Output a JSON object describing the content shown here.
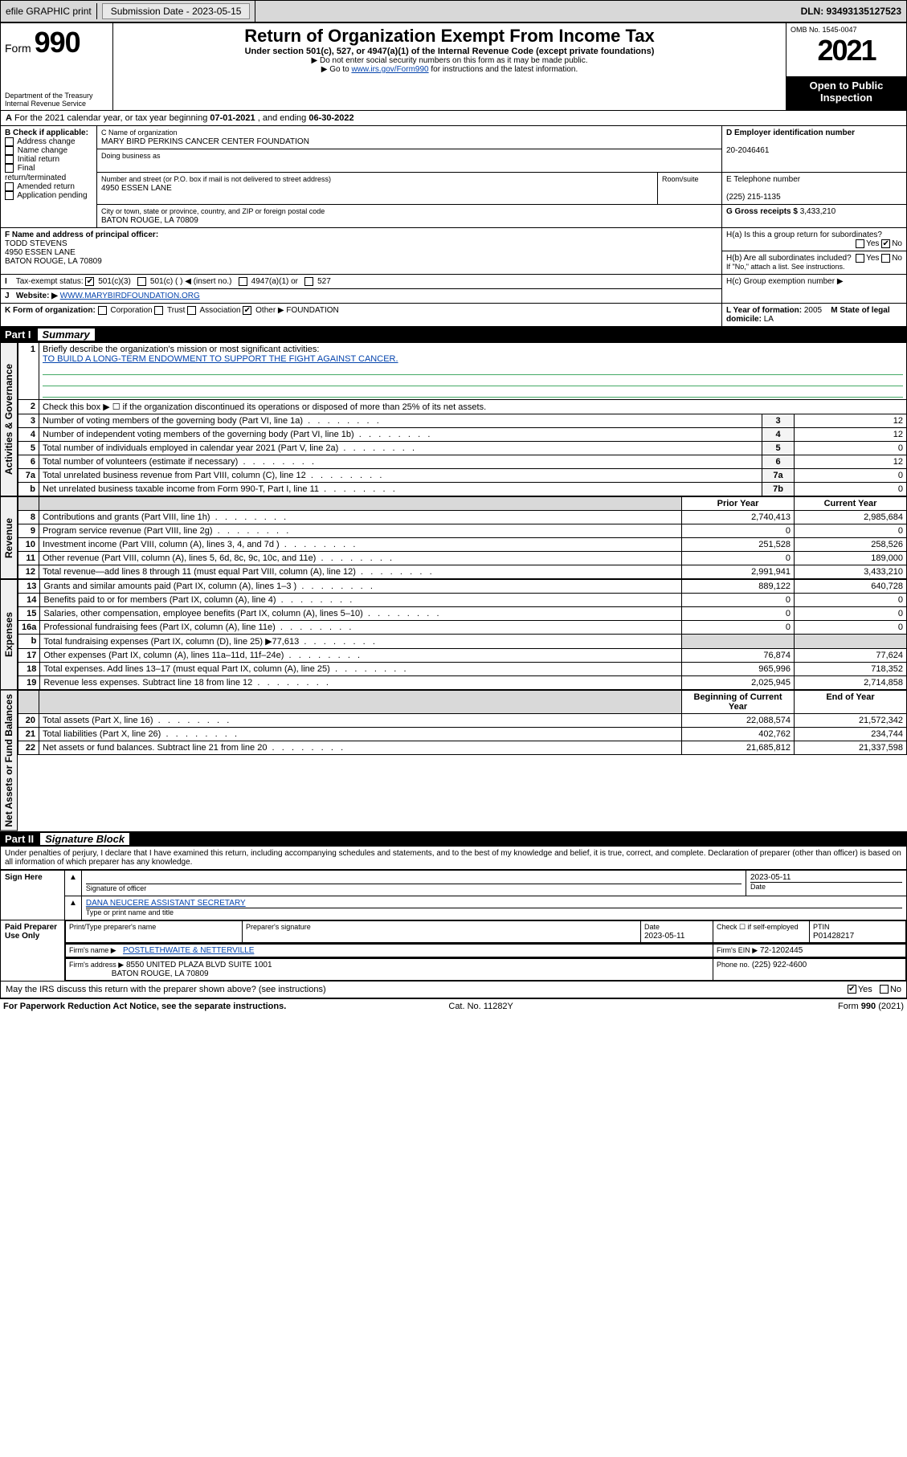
{
  "topbar": {
    "efile": "efile GRAPHIC print",
    "submission_label": "Submission Date - 2023-05-15",
    "dln": "DLN: 93493135127523"
  },
  "header": {
    "form_label": "Form",
    "form_number": "990",
    "title": "Return of Organization Exempt From Income Tax",
    "subtitle": "Under section 501(c), 527, or 4947(a)(1) of the Internal Revenue Code (except private foundations)",
    "note1": "▶ Do not enter social security numbers on this form as it may be made public.",
    "note2_pre": "▶ Go to ",
    "note2_link": "www.irs.gov/Form990",
    "note2_post": " for instructions and the latest information.",
    "dept": "Department of the Treasury",
    "irs": "Internal Revenue Service",
    "omb": "OMB No. 1545-0047",
    "year": "2021",
    "inspection": "Open to Public Inspection"
  },
  "a_line": {
    "pre": "For the 2021 calendar year, or tax year beginning ",
    "begin": "07-01-2021",
    "mid": " , and ending ",
    "end": "06-30-2022"
  },
  "b": {
    "title": "B Check if applicable:",
    "items": [
      "Address change",
      "Name change",
      "Initial return",
      "Final return/terminated",
      "Amended return",
      "Application pending"
    ]
  },
  "c": {
    "label_name": "C Name of organization",
    "org_name": "MARY BIRD PERKINS CANCER CENTER FOUNDATION",
    "dba_label": "Doing business as",
    "addr_label": "Number and street (or P.O. box if mail is not delivered to street address)",
    "room_label": "Room/suite",
    "street": "4950 ESSEN LANE",
    "city_label": "City or town, state or province, country, and ZIP or foreign postal code",
    "city": "BATON ROUGE, LA  70809"
  },
  "d": {
    "label": "D Employer identification number",
    "value": "20-2046461"
  },
  "e": {
    "label": "E Telephone number",
    "value": "(225) 215-1135"
  },
  "g": {
    "label": "G Gross receipts $",
    "value": "3,433,210"
  },
  "f": {
    "label": "F Name and address of principal officer:",
    "name": "TODD STEVENS",
    "street": "4950 ESSEN LANE",
    "city": "BATON ROUGE, LA  70809"
  },
  "h": {
    "a": "H(a)  Is this a group return for subordinates?",
    "b": "H(b)  Are all subordinates included?",
    "b_note": "If \"No,\" attach a list. See instructions.",
    "c": "H(c)  Group exemption number ▶",
    "yes": "Yes",
    "no": "No"
  },
  "i": {
    "label": "Tax-exempt status:",
    "opt1": "501(c)(3)",
    "opt2": "501(c) (  ) ◀ (insert no.)",
    "opt3": "4947(a)(1) or",
    "opt4": "527"
  },
  "j": {
    "label": "Website: ▶",
    "value": "WWW.MARYBIRDFOUNDATION.ORG"
  },
  "k": {
    "label": "K Form of organization:",
    "opts": [
      "Corporation",
      "Trust",
      "Association"
    ],
    "other_label": "Other ▶",
    "other_value": "FOUNDATION"
  },
  "l": {
    "label": "L Year of formation:",
    "value": "2005"
  },
  "m": {
    "label": "M State of legal domicile:",
    "value": "LA"
  },
  "part1": {
    "label": "Part I",
    "title": "Summary"
  },
  "part2": {
    "label": "Part II",
    "title": "Signature Block"
  },
  "sections": {
    "ag": "Activities & Governance",
    "rev": "Revenue",
    "exp": "Expenses",
    "nab": "Net Assets or Fund Balances"
  },
  "summary": {
    "l1": "Briefly describe the organization's mission or most significant activities:",
    "l1_val": "TO BUILD A LONG-TERM ENDOWMENT TO SUPPORT THE FIGHT AGAINST CANCER.",
    "l2": "Check this box ▶ ☐  if the organization discontinued its operations or disposed of more than 25% of its net assets.",
    "rows_ag": [
      {
        "n": "3",
        "t": "Number of voting members of the governing body (Part VI, line 1a)",
        "c": "3",
        "v": "12"
      },
      {
        "n": "4",
        "t": "Number of independent voting members of the governing body (Part VI, line 1b)",
        "c": "4",
        "v": "12"
      },
      {
        "n": "5",
        "t": "Total number of individuals employed in calendar year 2021 (Part V, line 2a)",
        "c": "5",
        "v": "0"
      },
      {
        "n": "6",
        "t": "Total number of volunteers (estimate if necessary)",
        "c": "6",
        "v": "12"
      },
      {
        "n": "7a",
        "t": "Total unrelated business revenue from Part VIII, column (C), line 12",
        "c": "7a",
        "v": "0"
      },
      {
        "n": "b",
        "t": "Net unrelated business taxable income from Form 990-T, Part I, line 11",
        "c": "7b",
        "v": "0"
      }
    ],
    "col_prior": "Prior Year",
    "col_current": "Current Year",
    "col_boy": "Beginning of Current Year",
    "col_eoy": "End of Year",
    "rows_rev": [
      {
        "n": "8",
        "t": "Contributions and grants (Part VIII, line 1h)",
        "p": "2,740,413",
        "c": "2,985,684"
      },
      {
        "n": "9",
        "t": "Program service revenue (Part VIII, line 2g)",
        "p": "0",
        "c": "0"
      },
      {
        "n": "10",
        "t": "Investment income (Part VIII, column (A), lines 3, 4, and 7d )",
        "p": "251,528",
        "c": "258,526"
      },
      {
        "n": "11",
        "t": "Other revenue (Part VIII, column (A), lines 5, 6d, 8c, 9c, 10c, and 11e)",
        "p": "0",
        "c": "189,000"
      },
      {
        "n": "12",
        "t": "Total revenue—add lines 8 through 11 (must equal Part VIII, column (A), line 12)",
        "p": "2,991,941",
        "c": "3,433,210"
      }
    ],
    "rows_exp": [
      {
        "n": "13",
        "t": "Grants and similar amounts paid (Part IX, column (A), lines 1–3 )",
        "p": "889,122",
        "c": "640,728"
      },
      {
        "n": "14",
        "t": "Benefits paid to or for members (Part IX, column (A), line 4)",
        "p": "0",
        "c": "0"
      },
      {
        "n": "15",
        "t": "Salaries, other compensation, employee benefits (Part IX, column (A), lines 5–10)",
        "p": "0",
        "c": "0"
      },
      {
        "n": "16a",
        "t": "Professional fundraising fees (Part IX, column (A), line 11e)",
        "p": "0",
        "c": "0"
      },
      {
        "n": "b",
        "t": "Total fundraising expenses (Part IX, column (D), line 25) ▶77,613",
        "p": "",
        "c": "",
        "shade": true
      },
      {
        "n": "17",
        "t": "Other expenses (Part IX, column (A), lines 11a–11d, 11f–24e)",
        "p": "76,874",
        "c": "77,624"
      },
      {
        "n": "18",
        "t": "Total expenses. Add lines 13–17 (must equal Part IX, column (A), line 25)",
        "p": "965,996",
        "c": "718,352"
      },
      {
        "n": "19",
        "t": "Revenue less expenses. Subtract line 18 from line 12",
        "p": "2,025,945",
        "c": "2,714,858"
      }
    ],
    "rows_nab": [
      {
        "n": "20",
        "t": "Total assets (Part X, line 16)",
        "p": "22,088,574",
        "c": "21,572,342"
      },
      {
        "n": "21",
        "t": "Total liabilities (Part X, line 26)",
        "p": "402,762",
        "c": "234,744"
      },
      {
        "n": "22",
        "t": "Net assets or fund balances. Subtract line 21 from line 20",
        "p": "21,685,812",
        "c": "21,337,598"
      }
    ]
  },
  "sig": {
    "declaration": "Under penalties of perjury, I declare that I have examined this return, including accompanying schedules and statements, and to the best of my knowledge and belief, it is true, correct, and complete. Declaration of preparer (other than officer) is based on all information of which preparer has any knowledge.",
    "sign_here": "Sign Here",
    "sig_officer_label": "Signature of officer",
    "date_label": "Date",
    "date_val": "2023-05-11",
    "name_title": "DANA NEUCERE  ASSISTANT SECRETARY",
    "name_label": "Type or print name and title",
    "paid": "Paid Preparer Use Only",
    "prep_name_label": "Print/Type preparer's name",
    "prep_sig_label": "Preparer's signature",
    "prep_date": "2023-05-11",
    "check_if": "Check ☐ if self-employed",
    "ptin_label": "PTIN",
    "ptin": "P01428217",
    "firm_name_label": "Firm's name   ▶",
    "firm_name": "POSTLETHWAITE & NETTERVILLE",
    "firm_ein_label": "Firm's EIN ▶",
    "firm_ein": "72-1202445",
    "firm_addr_label": "Firm's address ▶",
    "firm_addr1": "8550 UNITED PLAZA BLVD SUITE 1001",
    "firm_addr2": "BATON ROUGE, LA  70809",
    "firm_phone_label": "Phone no.",
    "firm_phone": "(225) 922-4600",
    "discuss": "May the IRS discuss this return with the preparer shown above? (see instructions)"
  },
  "footer": {
    "left": "For Paperwork Reduction Act Notice, see the separate instructions.",
    "mid": "Cat. No. 11282Y",
    "right": "Form 990 (2021)"
  }
}
